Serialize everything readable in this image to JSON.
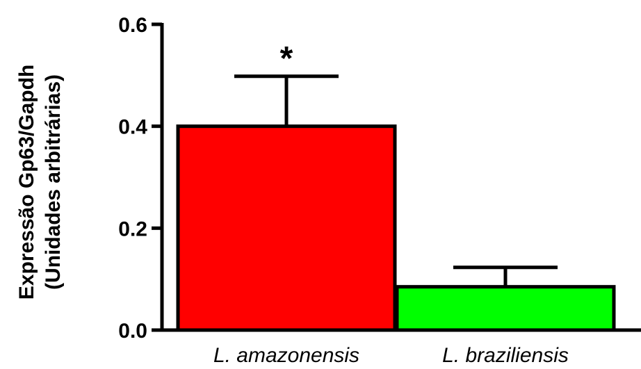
{
  "chart_data": {
    "type": "bar",
    "categories": [
      "L. amazonensis",
      "L. braziliensis"
    ],
    "values": [
      0.4,
      0.085
    ],
    "errors": [
      0.098,
      0.038
    ],
    "colors": [
      "#ff0000",
      "#00ff00"
    ],
    "annotations": [
      "*",
      ""
    ],
    "ylabel_line1": "Expressão Gp63/Gapdh",
    "ylabel_line2": "(Unidades arbitrárias)",
    "ylim": [
      0,
      0.6
    ],
    "yticks": [
      "0.0",
      "0.2",
      "0.4",
      "0.6"
    ],
    "ytick_values": [
      0,
      0.2,
      0.4,
      0.6
    ],
    "grid": false
  }
}
